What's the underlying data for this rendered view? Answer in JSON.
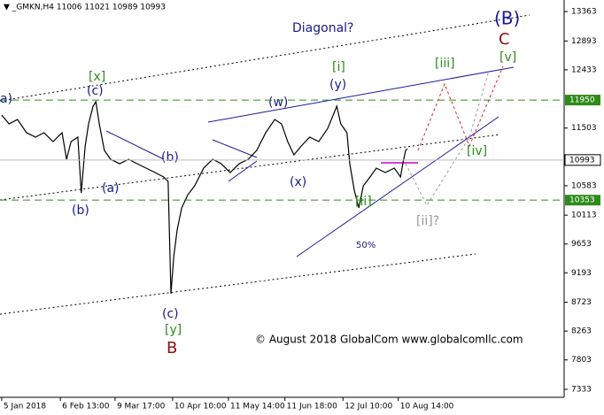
{
  "chart_data": {
    "type": "line",
    "title": "▼ _GMKN,H4  11006 11021 10989 10993",
    "x": [
      0.3,
      1.6,
      3.1,
      4.7,
      6.3,
      7.8,
      9.4,
      11.0,
      11.8,
      12.6,
      13.8,
      14.4,
      15.1,
      15.7,
      16.5,
      17.0,
      17.6,
      18.5,
      19.6,
      21.2,
      22.8,
      24.3,
      25.9,
      27.5,
      29.0,
      29.8,
      30.3,
      30.8,
      31.4,
      32.2,
      33.3,
      34.5,
      36.1,
      37.7,
      39.2,
      40.8,
      42.4,
      44.0,
      45.5,
      47.1,
      48.7,
      49.9,
      51.0,
      52.1,
      53.4,
      54.9,
      56.5,
      58.1,
      59.7,
      60.4,
      61.5,
      62.0,
      62.8,
      63.6,
      64.4,
      65.6,
      66.7,
      68.3,
      69.9,
      71.0,
      71.4,
      71.9,
      72.2
    ],
    "series": [
      {
        "name": "_GMKN,H4",
        "color": "#000000",
        "values": [
          11711,
          11570,
          11640,
          11429,
          11358,
          11429,
          11287,
          11429,
          11005,
          11287,
          11358,
          10468,
          11217,
          11570,
          11852,
          11923,
          11570,
          11146,
          11005,
          10934,
          11005,
          10934,
          10864,
          10793,
          10723,
          10652,
          8859,
          9452,
          9875,
          10228,
          10440,
          10581,
          10864,
          11005,
          10934,
          10793,
          10934,
          11005,
          11146,
          11429,
          11640,
          11570,
          11287,
          11075,
          11217,
          11358,
          11287,
          11499,
          11852,
          11570,
          11429,
          10934,
          10511,
          10228,
          10581,
          10723,
          10864,
          10793,
          10864,
          10723,
          10934,
          11146,
          11174
        ]
      }
    ],
    "xlim": [
      0,
      100
    ],
    "ylim": [
      7206,
      13547
    ],
    "xticks": [
      {
        "value": 0.3,
        "label": "5 Jan 2018"
      },
      {
        "value": 10.7,
        "label": "6 Feb 13:00"
      },
      {
        "value": 20.4,
        "label": "9 Mar 17:00"
      },
      {
        "value": 30.6,
        "label": "10 Apr 10:00"
      },
      {
        "value": 40.5,
        "label": "11 May 14:00"
      },
      {
        "value": 50.5,
        "label": "11 Jun 18:00"
      },
      {
        "value": 60.8,
        "label": "12 Jul 10:00"
      },
      {
        "value": 70.6,
        "label": "10 Aug 14:00"
      }
    ],
    "yticks": [
      13363,
      12893,
      12433,
      11503,
      10583,
      10113,
      9653,
      9193,
      8723,
      8263,
      7803,
      7333
    ],
    "levels": [
      11950,
      10353
    ],
    "level_color": "#2e8b1a",
    "current_price": 10993,
    "annotations": [
      "a)",
      "(c)",
      "[x]",
      "(b)",
      "(a)",
      "(b)",
      "(c)",
      "[y]",
      "B",
      "(w)",
      "[i]",
      "(y)",
      "(x)",
      "[ii]",
      "50%",
      "[ii]?",
      "[iii]",
      "[iv]",
      "[v]",
      "(B)",
      "C",
      "Diagonal?",
      "© August 2018 GlobalCom www.globalcomllc.com"
    ]
  }
}
